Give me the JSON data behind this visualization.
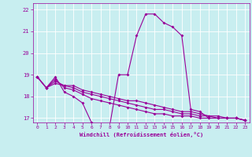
{
  "xlabel": "Windchill (Refroidissement éolien,°C)",
  "xlim": [
    -0.5,
    23.5
  ],
  "ylim": [
    16.8,
    22.3
  ],
  "xticks": [
    0,
    1,
    2,
    3,
    4,
    5,
    6,
    7,
    8,
    9,
    10,
    11,
    12,
    13,
    14,
    15,
    16,
    17,
    18,
    19,
    20,
    21,
    22,
    23
  ],
  "yticks": [
    17,
    18,
    19,
    20,
    21,
    22
  ],
  "bg_color": "#c8eef0",
  "line_color": "#990099",
  "grid_color": "#ffffff",
  "line1": [
    18.9,
    18.4,
    18.9,
    18.2,
    18.0,
    17.7,
    16.8,
    16.7,
    16.6,
    19.0,
    19.0,
    20.8,
    21.8,
    21.8,
    21.4,
    21.2,
    20.8,
    17.4,
    17.3,
    17.0,
    17.0,
    17.0,
    17.0,
    16.9
  ],
  "line2": [
    18.9,
    18.4,
    18.8,
    18.4,
    18.3,
    18.1,
    17.9,
    17.8,
    17.7,
    17.6,
    17.5,
    17.4,
    17.3,
    17.2,
    17.2,
    17.1,
    17.1,
    17.1,
    17.0,
    17.0,
    17.0,
    17.0,
    17.0,
    16.9
  ],
  "line3": [
    18.9,
    18.4,
    18.7,
    18.5,
    18.4,
    18.2,
    18.1,
    18.0,
    17.9,
    17.8,
    17.7,
    17.6,
    17.5,
    17.4,
    17.4,
    17.3,
    17.2,
    17.2,
    17.1,
    17.1,
    17.0,
    17.0,
    17.0,
    16.9
  ],
  "line4": [
    18.9,
    18.4,
    18.6,
    18.5,
    18.5,
    18.3,
    18.2,
    18.1,
    18.0,
    17.9,
    17.8,
    17.8,
    17.7,
    17.6,
    17.5,
    17.4,
    17.3,
    17.3,
    17.2,
    17.1,
    17.1,
    17.0,
    17.0,
    16.9
  ]
}
